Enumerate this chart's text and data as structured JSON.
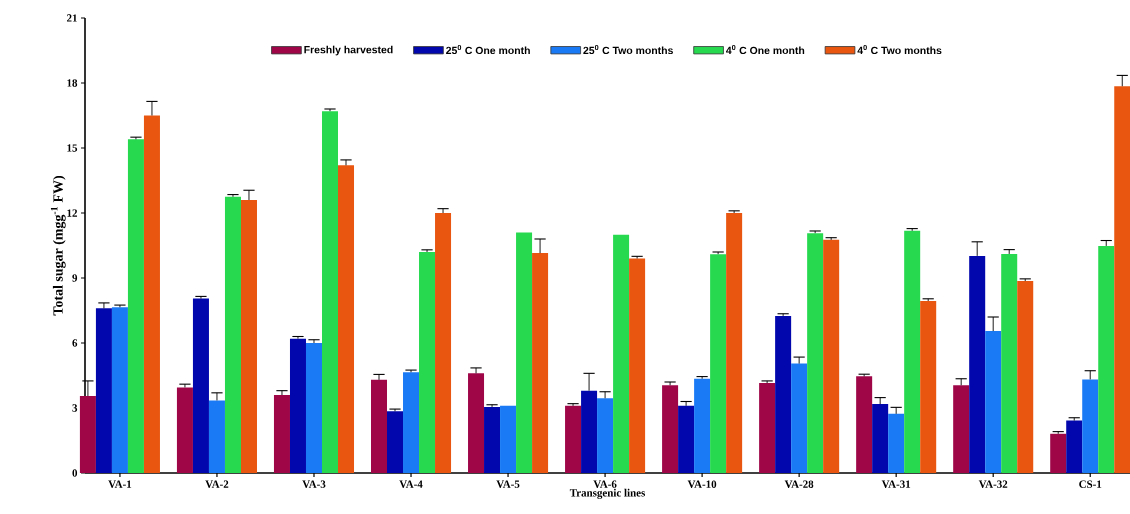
{
  "chart_data": {
    "type": "bar",
    "xlabel": "Transgenic lines",
    "ylabel": "Total sugar (mgg$^{-1}$ FW)",
    "categories": [
      "VA-1",
      "VA-2",
      "VA-3",
      "VA-4",
      "VA-5",
      "VA-6",
      "VA-10",
      "VA-28",
      "VA-31",
      "VA-32",
      "CS-1"
    ],
    "ylim": [
      0,
      21
    ],
    "yticks": [
      0,
      3,
      6,
      9,
      12,
      15,
      18,
      21
    ],
    "grid": false,
    "legend": "top",
    "series": [
      {
        "name": "Freshly harvested",
        "color": "#9e0648",
        "values": [
          3.55,
          3.95,
          3.6,
          4.3,
          4.6,
          3.1,
          4.05,
          4.15,
          4.46,
          4.05,
          1.81
        ],
        "errors": [
          0.7,
          0.15,
          0.2,
          0.25,
          0.25,
          0.1,
          0.15,
          0.1,
          0.1,
          0.3,
          0.1
        ]
      },
      {
        "name": "25$^{0}$ C One month",
        "color": "#0206ad",
        "values": [
          7.6,
          8.05,
          6.2,
          2.85,
          3.05,
          3.8,
          3.1,
          7.25,
          3.18,
          10.02,
          2.42
        ],
        "errors": [
          0.25,
          0.1,
          0.1,
          0.1,
          0.1,
          0.8,
          0.2,
          0.1,
          0.3,
          0.65,
          0.13
        ]
      },
      {
        "name": "25$^{0}$ C Two months",
        "color": "#1a7af5",
        "values": [
          7.65,
          3.35,
          6.0,
          4.65,
          3.1,
          3.45,
          4.35,
          5.05,
          2.73,
          6.55,
          4.32
        ],
        "errors": [
          0.1,
          0.35,
          0.15,
          0.1,
          null,
          0.3,
          0.1,
          0.3,
          0.3,
          0.65,
          0.4
        ]
      },
      {
        "name": "4$^{0}$ C One month",
        "color": "#26d94f",
        "values": [
          15.4,
          12.75,
          16.7,
          10.2,
          11.1,
          11.0,
          10.1,
          11.07,
          11.18,
          10.11,
          10.48
        ],
        "errors": [
          0.1,
          0.1,
          0.1,
          0.1,
          null,
          null,
          0.1,
          0.1,
          0.1,
          0.2,
          0.25
        ]
      },
      {
        "name": "4$^{0}$ C Two months",
        "color": "#e85610",
        "values": [
          16.5,
          12.6,
          14.2,
          12.0,
          10.15,
          9.9,
          12.0,
          10.76,
          7.94,
          8.86,
          17.85
        ],
        "errors": [
          0.65,
          0.45,
          0.25,
          0.2,
          0.65,
          0.1,
          0.1,
          0.1,
          0.1,
          0.1,
          0.5
        ]
      }
    ]
  }
}
